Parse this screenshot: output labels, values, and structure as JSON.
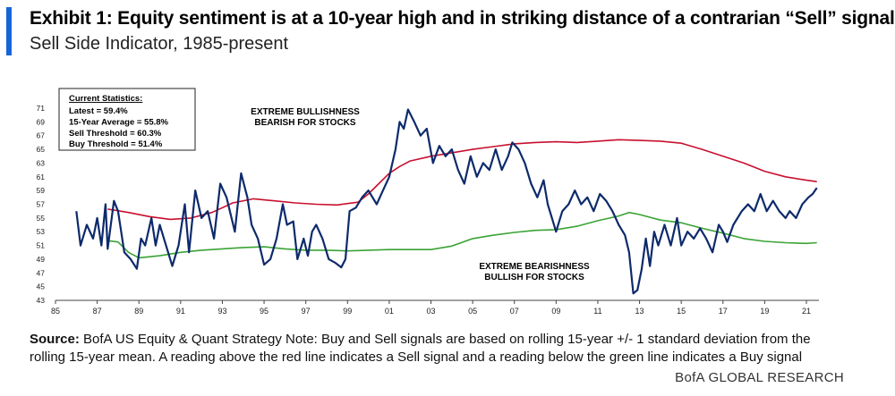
{
  "header": {
    "title": "Exhibit 1: Equity sentiment is at a 10-year high and in striking distance of a contrarian “Sell” signal",
    "subtitle": "Sell Side Indicator, 1985-present"
  },
  "colors": {
    "accent": "#1565d8",
    "sentiment": "#0d2a6b",
    "sell_line": "#c8102e",
    "buy_line": "#3aa335"
  },
  "stats": {
    "heading": "Current Statistics:",
    "lines": [
      "Latest = 59.4%",
      "15-Year Average = 55.8%",
      "Sell Threshold = 60.3%",
      "Buy Threshold = 51.4%"
    ]
  },
  "annotations": {
    "bull": [
      "EXTREME BULLISHNESS",
      "BEARISH FOR STOCKS"
    ],
    "bear": [
      "EXTREME BEARISHNESS",
      "BULLISH FOR STOCKS"
    ]
  },
  "source": {
    "label": "Source:",
    "text": "BofA US Equity & Quant Strategy Note: Buy and Sell signals are based on rolling 15-year +/- 1 standard deviation from the rolling 15-year mean. A reading above the red line indicates a Sell signal and a reading below the green line indicates a Buy signal"
  },
  "footer": "BofA GLOBAL RESEARCH",
  "chart_data": {
    "type": "line",
    "title": "",
    "xlabel": "",
    "ylabel": "",
    "xlim": [
      1985,
      2021.6
    ],
    "ylim": [
      43,
      71
    ],
    "yticks": [
      43,
      45,
      47,
      49,
      51,
      53,
      55,
      57,
      59,
      61,
      63,
      65,
      67,
      69,
      71
    ],
    "xticks": [
      "85",
      "87",
      "89",
      "91",
      "93",
      "95",
      "97",
      "99",
      "01",
      "03",
      "05",
      "07",
      "09",
      "11",
      "13",
      "15",
      "17",
      "19",
      "21"
    ],
    "grid": false,
    "series": [
      {
        "name": "",
        "role": "sentiment",
        "points": [
          [
            1986.0,
            56
          ],
          [
            1986.2,
            51
          ],
          [
            1986.5,
            54
          ],
          [
            1986.8,
            52
          ],
          [
            1987.0,
            55
          ],
          [
            1987.2,
            51
          ],
          [
            1987.4,
            57
          ],
          [
            1987.5,
            50.5
          ],
          [
            1987.8,
            57.5
          ],
          [
            1988.0,
            56
          ],
          [
            1988.3,
            50
          ],
          [
            1988.6,
            49
          ],
          [
            1988.9,
            47.6
          ],
          [
            1989.1,
            52
          ],
          [
            1989.3,
            51
          ],
          [
            1989.6,
            55
          ],
          [
            1989.8,
            51
          ],
          [
            1990.0,
            54
          ],
          [
            1990.3,
            51
          ],
          [
            1990.6,
            48
          ],
          [
            1990.9,
            51
          ],
          [
            1991.2,
            57
          ],
          [
            1991.4,
            50
          ],
          [
            1991.7,
            59
          ],
          [
            1992.0,
            55
          ],
          [
            1992.3,
            56
          ],
          [
            1992.6,
            52
          ],
          [
            1992.9,
            60
          ],
          [
            1993.2,
            58
          ],
          [
            1993.6,
            53
          ],
          [
            1993.9,
            61.5
          ],
          [
            1994.2,
            58
          ],
          [
            1994.4,
            54
          ],
          [
            1994.7,
            52
          ],
          [
            1995.0,
            48.2
          ],
          [
            1995.3,
            49
          ],
          [
            1995.6,
            52
          ],
          [
            1995.9,
            57
          ],
          [
            1996.1,
            54
          ],
          [
            1996.4,
            54.5
          ],
          [
            1996.6,
            49
          ],
          [
            1996.9,
            52
          ],
          [
            1997.1,
            49.5
          ],
          [
            1997.3,
            53
          ],
          [
            1997.5,
            54
          ],
          [
            1997.8,
            52
          ],
          [
            1998.1,
            49
          ],
          [
            1998.4,
            48.5
          ],
          [
            1998.7,
            47.8
          ],
          [
            1998.9,
            49
          ],
          [
            1999.1,
            56
          ],
          [
            1999.4,
            56.5
          ],
          [
            1999.7,
            58
          ],
          [
            2000.0,
            59
          ],
          [
            2000.4,
            57
          ],
          [
            2000.7,
            59
          ],
          [
            2001.0,
            61
          ],
          [
            2001.3,
            65
          ],
          [
            2001.5,
            69
          ],
          [
            2001.7,
            68
          ],
          [
            2001.9,
            70.8
          ],
          [
            2002.2,
            69
          ],
          [
            2002.5,
            67
          ],
          [
            2002.8,
            68
          ],
          [
            2003.1,
            63
          ],
          [
            2003.4,
            65.5
          ],
          [
            2003.7,
            64
          ],
          [
            2004.0,
            65
          ],
          [
            2004.3,
            62
          ],
          [
            2004.6,
            60
          ],
          [
            2004.9,
            64
          ],
          [
            2005.2,
            61
          ],
          [
            2005.5,
            63
          ],
          [
            2005.8,
            62
          ],
          [
            2006.1,
            65
          ],
          [
            2006.4,
            62
          ],
          [
            2006.7,
            64
          ],
          [
            2006.9,
            66
          ],
          [
            2007.2,
            65
          ],
          [
            2007.5,
            63
          ],
          [
            2007.8,
            60
          ],
          [
            2008.1,
            58
          ],
          [
            2008.4,
            60.5
          ],
          [
            2008.6,
            57
          ],
          [
            2008.8,
            55
          ],
          [
            2009.0,
            53
          ],
          [
            2009.3,
            56
          ],
          [
            2009.6,
            57
          ],
          [
            2009.9,
            59
          ],
          [
            2010.2,
            57
          ],
          [
            2010.5,
            58
          ],
          [
            2010.8,
            56
          ],
          [
            2011.1,
            58.5
          ],
          [
            2011.4,
            57.5
          ],
          [
            2011.7,
            56
          ],
          [
            2012.0,
            54
          ],
          [
            2012.3,
            52.5
          ],
          [
            2012.5,
            50
          ],
          [
            2012.7,
            44
          ],
          [
            2012.9,
            44.5
          ],
          [
            2013.1,
            47.5
          ],
          [
            2013.3,
            52
          ],
          [
            2013.5,
            48
          ],
          [
            2013.7,
            53
          ],
          [
            2013.9,
            51
          ],
          [
            2014.2,
            54
          ],
          [
            2014.5,
            51
          ],
          [
            2014.8,
            55
          ],
          [
            2015.0,
            51
          ],
          [
            2015.3,
            53
          ],
          [
            2015.6,
            52
          ],
          [
            2015.9,
            53.5
          ],
          [
            2016.2,
            52
          ],
          [
            2016.5,
            50
          ],
          [
            2016.8,
            54
          ],
          [
            2017.0,
            53
          ],
          [
            2017.2,
            51.5
          ],
          [
            2017.5,
            54
          ],
          [
            2017.9,
            56
          ],
          [
            2018.2,
            57
          ],
          [
            2018.5,
            56
          ],
          [
            2018.8,
            58.5
          ],
          [
            2019.1,
            56
          ],
          [
            2019.4,
            57.5
          ],
          [
            2019.7,
            56
          ],
          [
            2020.0,
            55
          ],
          [
            2020.2,
            56
          ],
          [
            2020.5,
            55
          ],
          [
            2020.8,
            57
          ],
          [
            2021.1,
            58
          ],
          [
            2021.3,
            58.5
          ],
          [
            2021.5,
            59.4
          ]
        ]
      },
      {
        "name": "",
        "role": "sell_threshold",
        "points": [
          [
            1987.5,
            56.3
          ],
          [
            1988.5,
            55.8
          ],
          [
            1989.5,
            55.2
          ],
          [
            1990.5,
            54.8
          ],
          [
            1991.5,
            55.0
          ],
          [
            1992.5,
            55.8
          ],
          [
            1993.5,
            57.2
          ],
          [
            1994.5,
            57.8
          ],
          [
            1995.5,
            57.5
          ],
          [
            1996.5,
            57.2
          ],
          [
            1997.5,
            57.0
          ],
          [
            1998.5,
            56.9
          ],
          [
            1999.5,
            57.3
          ],
          [
            2000.0,
            58.5
          ],
          [
            2000.5,
            60.0
          ],
          [
            2001.0,
            61.5
          ],
          [
            2001.5,
            62.5
          ],
          [
            2002.0,
            63.3
          ],
          [
            2003.0,
            64.0
          ],
          [
            2004.0,
            64.5
          ],
          [
            2005.0,
            65.0
          ],
          [
            2006.0,
            65.4
          ],
          [
            2007.0,
            65.8
          ],
          [
            2008.0,
            66.0
          ],
          [
            2009.0,
            66.1
          ],
          [
            2010.0,
            66.0
          ],
          [
            2011.0,
            66.2
          ],
          [
            2012.0,
            66.4
          ],
          [
            2013.0,
            66.3
          ],
          [
            2014.0,
            66.2
          ],
          [
            2015.0,
            65.9
          ],
          [
            2016.0,
            65.0
          ],
          [
            2017.0,
            64.0
          ],
          [
            2018.0,
            63.0
          ],
          [
            2019.0,
            61.8
          ],
          [
            2020.0,
            61.0
          ],
          [
            2021.0,
            60.5
          ],
          [
            2021.5,
            60.3
          ]
        ]
      },
      {
        "name": "",
        "role": "buy_threshold",
        "points": [
          [
            1987.5,
            51.7
          ],
          [
            1988.0,
            51.5
          ],
          [
            1988.5,
            50.0
          ],
          [
            1989.0,
            49.2
          ],
          [
            1990.0,
            49.5
          ],
          [
            1991.0,
            50.0
          ],
          [
            1992.0,
            50.3
          ],
          [
            1993.0,
            50.5
          ],
          [
            1994.0,
            50.7
          ],
          [
            1995.0,
            50.8
          ],
          [
            1996.0,
            50.5
          ],
          [
            1997.0,
            50.3
          ],
          [
            1998.0,
            50.3
          ],
          [
            1999.0,
            50.2
          ],
          [
            2000.0,
            50.3
          ],
          [
            2001.0,
            50.4
          ],
          [
            2002.0,
            50.4
          ],
          [
            2003.0,
            50.4
          ],
          [
            2004.0,
            50.9
          ],
          [
            2005.0,
            52.0
          ],
          [
            2006.0,
            52.5
          ],
          [
            2007.0,
            52.9
          ],
          [
            2008.0,
            53.2
          ],
          [
            2009.0,
            53.3
          ],
          [
            2010.0,
            53.8
          ],
          [
            2011.0,
            54.6
          ],
          [
            2012.0,
            55.3
          ],
          [
            2012.5,
            55.8
          ],
          [
            2013.0,
            55.5
          ],
          [
            2014.0,
            54.7
          ],
          [
            2015.0,
            54.3
          ],
          [
            2016.0,
            53.5
          ],
          [
            2017.0,
            52.8
          ],
          [
            2018.0,
            52.0
          ],
          [
            2019.0,
            51.6
          ],
          [
            2020.0,
            51.4
          ],
          [
            2021.0,
            51.3
          ],
          [
            2021.5,
            51.4
          ]
        ]
      }
    ]
  }
}
